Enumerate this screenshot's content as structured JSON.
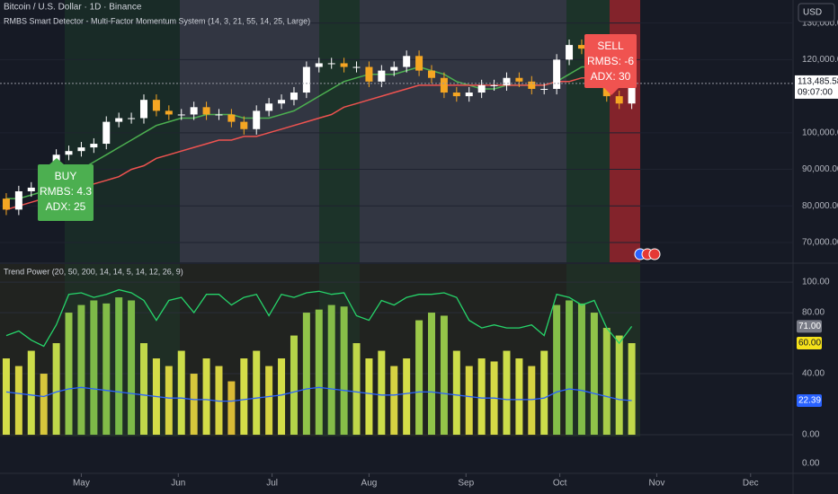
{
  "chart_data": [
    {
      "type": "candlestick",
      "title": "Bitcoin / U.S. Dollar · 1D · Binance",
      "subtitle": "RMBS Smart Detector - Multi-Factor Momentum System (14, 3, 21, 55, 14, 25, Large)",
      "currency": "USD",
      "x": [
        2,
        6,
        10,
        14,
        18,
        22,
        26,
        30,
        34,
        38,
        42,
        46,
        50,
        54,
        58,
        62,
        66,
        70,
        74,
        78,
        82,
        86,
        90,
        94,
        98,
        102,
        106,
        110,
        114,
        118,
        122,
        126,
        130,
        134,
        138,
        142,
        146,
        150,
        154,
        158,
        162,
        166,
        170,
        174,
        178,
        182,
        186,
        190,
        194,
        198,
        202
      ],
      "open": [
        82000,
        79000,
        84000,
        85000,
        87000,
        94000,
        95000,
        96000,
        97000,
        103000,
        104000,
        104000,
        109000,
        106000,
        105000,
        105000,
        107000,
        105000,
        105000,
        103000,
        101000,
        106000,
        108000,
        109000,
        111000,
        118000,
        119000,
        119000,
        118000,
        118000,
        114000,
        117000,
        118000,
        121000,
        117000,
        115000,
        111000,
        110000,
        111000,
        113000,
        113000,
        115000,
        114000,
        112000,
        112000,
        120000,
        124000,
        123000,
        114000,
        110000,
        108000
      ],
      "high": [
        83500,
        85500,
        86500,
        88500,
        95500,
        96500,
        97500,
        98500,
        104500,
        105500,
        105500,
        110500,
        110500,
        107500,
        106500,
        108500,
        108500,
        106500,
        106500,
        104500,
        107500,
        109500,
        110500,
        112500,
        119500,
        120500,
        120500,
        120500,
        119500,
        119500,
        118500,
        119500,
        122500,
        122500,
        118500,
        116500,
        112500,
        112500,
        114500,
        114500,
        116500,
        116500,
        115500,
        113500,
        121500,
        125500,
        125500,
        124500,
        115500,
        111500,
        114500
      ],
      "low": [
        77500,
        77500,
        82500,
        83500,
        85500,
        92500,
        93500,
        94500,
        95500,
        101500,
        102500,
        102500,
        104500,
        103500,
        103500,
        103500,
        103500,
        103500,
        101500,
        99500,
        99500,
        104500,
        106500,
        107500,
        109500,
        116500,
        117500,
        116500,
        116500,
        112500,
        112500,
        115500,
        116500,
        115500,
        113500,
        109500,
        108500,
        108500,
        109500,
        111500,
        111500,
        112500,
        110500,
        110500,
        110500,
        118500,
        121500,
        112500,
        108500,
        106500,
        106500
      ],
      "close": [
        79000,
        84000,
        85000,
        87000,
        94000,
        95000,
        96000,
        97000,
        103000,
        104000,
        104000,
        109000,
        106000,
        105000,
        105000,
        107000,
        105000,
        105000,
        103000,
        101000,
        106000,
        108000,
        109000,
        111000,
        118000,
        119000,
        119000,
        118000,
        118000,
        114000,
        117000,
        118000,
        121000,
        117000,
        115000,
        111000,
        110000,
        111000,
        113000,
        113000,
        115000,
        114000,
        112000,
        112000,
        120000,
        124000,
        123000,
        114000,
        110000,
        108000,
        113485.58
      ],
      "up_color": "#ffffff",
      "down_color": "#f5a623",
      "series": [
        {
          "color": "#4caf50",
          "values": [
            82000,
            82000,
            83000,
            84000,
            86000,
            88000,
            90000,
            92000,
            94000,
            96000,
            98000,
            100000,
            102000,
            103000,
            104000,
            104000,
            105000,
            105000,
            105000,
            104000,
            104000,
            104000,
            105000,
            106000,
            108000,
            110000,
            112000,
            114000,
            115000,
            116000,
            116000,
            116000,
            117000,
            118000,
            117000,
            116000,
            114000,
            113000,
            112000,
            112000,
            113000,
            113000,
            113000,
            113000,
            114000,
            116000,
            118000,
            118000,
            117000,
            115000,
            113000
          ]
        },
        {
          "color": "#ef5350",
          "values": [
            79000,
            80000,
            81000,
            82000,
            83000,
            84000,
            85000,
            86000,
            87000,
            88000,
            90000,
            91000,
            93000,
            94000,
            95000,
            96000,
            97000,
            98000,
            98000,
            99000,
            99000,
            100000,
            101000,
            102000,
            103000,
            104000,
            105000,
            107000,
            108000,
            109000,
            110000,
            111000,
            112000,
            113000,
            113000,
            113000,
            113000,
            113000,
            113000,
            113000,
            113000,
            113000,
            113000,
            113000,
            114000,
            114000,
            115000,
            115000,
            115000,
            114000,
            114000
          ]
        }
      ],
      "xlim": [
        0,
        253
      ],
      "xticks": [
        {
          "value": 26,
          "label": "May"
        },
        {
          "value": 57,
          "label": "Jun"
        },
        {
          "value": 87,
          "label": "Jul"
        },
        {
          "value": 118,
          "label": "Aug"
        },
        {
          "value": 149,
          "label": "Sep"
        },
        {
          "value": 179,
          "label": "Oct"
        },
        {
          "value": 210,
          "label": "Nov"
        },
        {
          "value": 240,
          "label": "Dec"
        }
      ],
      "ylim": [
        64600,
        136300
      ],
      "yticks": [
        {
          "value": 70000,
          "label": "70,000.00"
        },
        {
          "value": 80000,
          "label": "80,000.00"
        },
        {
          "value": 90000,
          "label": "90,000.00"
        },
        {
          "value": 100000,
          "label": "100,000.00"
        },
        {
          "value": 120000,
          "label": "120,000.00"
        },
        {
          "value": 130000,
          "label": "130,000.00"
        }
      ],
      "last_price": {
        "value": 113485.58,
        "label": "113,485.58"
      },
      "countdown": "09:07:00",
      "annotations": [
        {
          "text": [
            "BUY",
            "RMBS: 4.3",
            "ADX: 25"
          ],
          "color": "#4caf50"
        },
        {
          "text": [
            "SELL",
            "RMBS: -6",
            "ADX: 30"
          ],
          "color": "#f05350"
        }
      ]
    },
    {
      "type": "bar_line",
      "title": "Trend Power (20, 50, 200, 14, 14, 5, 14, 12, 26, 9)",
      "ylim": [
        -9.4,
        112.4
      ],
      "yticks": [
        {
          "value": 100,
          "label": "100.00"
        },
        {
          "value": 80,
          "label": "80.00"
        },
        {
          "value": 40,
          "label": "40.00"
        },
        {
          "value": 0,
          "label": "0.00"
        }
      ],
      "bar_colors": [
        "#e65100",
        "#d4e14a",
        "#43a047"
      ],
      "series": [
        {
          "kind": "bar",
          "values": [
            50,
            45,
            55,
            40,
            60,
            80,
            85,
            88,
            86,
            90,
            88,
            60,
            50,
            45,
            55,
            40,
            50,
            45,
            35,
            50,
            55,
            45,
            50,
            65,
            80,
            82,
            85,
            84,
            60,
            50,
            55,
            45,
            50,
            75,
            80,
            78,
            55,
            45,
            50,
            48,
            55,
            50,
            45,
            55,
            85,
            88,
            86,
            80,
            70,
            65,
            60
          ],
          "last_label": "60.00",
          "label_color": "#f5e11a"
        },
        {
          "kind": "line",
          "color": "#26d46a",
          "values": [
            65,
            68,
            62,
            58,
            72,
            92,
            93,
            90,
            92,
            95,
            93,
            88,
            75,
            88,
            90,
            80,
            92,
            92,
            85,
            90,
            92,
            78,
            92,
            90,
            93,
            94,
            92,
            93,
            78,
            75,
            88,
            85,
            90,
            92,
            92,
            93,
            90,
            75,
            70,
            72,
            70,
            70,
            72,
            65,
            92,
            90,
            85,
            88,
            70,
            60,
            71
          ],
          "last_label": "71.00",
          "label_color": "#787b86"
        },
        {
          "kind": "line",
          "color": "#2962ff",
          "values": [
            28,
            27,
            26,
            25,
            28,
            30,
            31,
            30,
            29,
            28,
            27,
            26,
            25,
            24,
            24,
            23,
            23,
            22,
            22,
            23,
            24,
            25,
            26,
            28,
            30,
            31,
            30,
            29,
            28,
            27,
            26,
            26,
            27,
            28,
            28,
            27,
            26,
            25,
            24,
            24,
            23,
            23,
            23,
            24,
            28,
            30,
            29,
            27,
            25,
            23,
            22.39
          ],
          "last_label": "22.39",
          "label_color": "#2962ff"
        }
      ],
      "lower_pane_label": "0.00"
    }
  ]
}
